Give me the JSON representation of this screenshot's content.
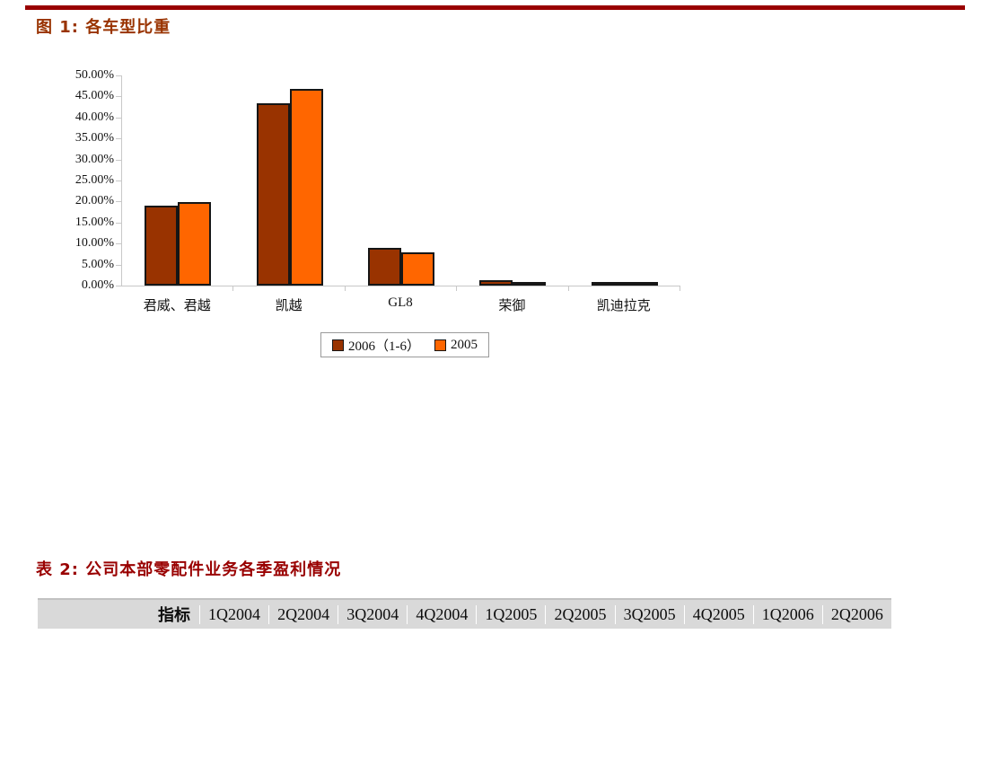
{
  "page": {
    "background": "#ffffff",
    "top_rule_color": "#990000"
  },
  "figure": {
    "title": "图 1: 各车型比重",
    "title_color": "#993300"
  },
  "chart_data": {
    "type": "bar",
    "title": "各车型比重",
    "categories": [
      "君威、君越",
      "凯越",
      "GL8",
      "荣御",
      "凯迪拉克"
    ],
    "series": [
      {
        "name": "2006（1-6）",
        "color": "#993300",
        "values": [
          19.1,
          43.3,
          8.9,
          1.3,
          0.5
        ]
      },
      {
        "name": "2005",
        "color": "#FF6600",
        "values": [
          19.9,
          46.8,
          7.9,
          0.6,
          0.5
        ]
      }
    ],
    "xlabel": "",
    "ylabel": "",
    "ylim": [
      0,
      50
    ],
    "ytick_step": 5,
    "ytick_labels": [
      "50.00%",
      "45.00%",
      "40.00%",
      "35.00%",
      "30.00%",
      "25.00%",
      "20.00%",
      "15.00%",
      "10.00%",
      "5.00%",
      "0.00%"
    ],
    "grid": false,
    "legend_position": "bottom",
    "bar_border_color": "#161616",
    "axis_color": "#c8c8c8",
    "plot_background": "#ffffff"
  },
  "table": {
    "title": "表 2: 公司本部零配件业务各季盈利情况",
    "title_color": "#990000",
    "header_background": "#d9d9d9",
    "header": [
      "指标",
      "1Q2004",
      "2Q2004",
      "3Q2004",
      "4Q2004",
      "1Q2005",
      "2Q2005",
      "3Q2005",
      "4Q2005",
      "1Q2006",
      "2Q2006"
    ]
  }
}
